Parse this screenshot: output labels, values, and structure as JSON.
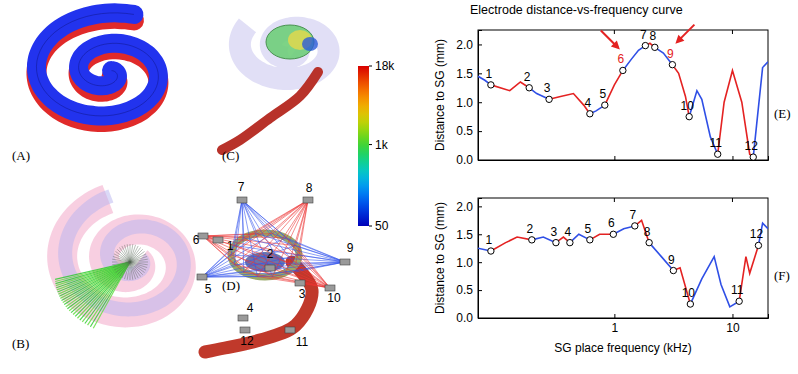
{
  "chart_data": [
    {
      "type": "line",
      "title": "Electrode distance-vs-frequency curve",
      "panel": "(E)",
      "y_label": "Distance to SG (mm)",
      "log": "x",
      "xlim": [
        0.07,
        20
      ],
      "xticks": [
        1,
        10
      ],
      "ylim": [
        0,
        2.25
      ],
      "yticks": [
        {
          "value": 0,
          "label": "0.0"
        },
        0.5,
        {
          "value": 1,
          "label": "1.0"
        },
        1.5,
        {
          "value": 2,
          "label": "2.0"
        }
      ],
      "tick_labels": "y",
      "series": [
        {
          "type": "line",
          "line_style": "solid",
          "color": "#2f4fe6",
          "x": [
            0.07,
            0.08,
            0.09
          ],
          "values": [
            1.45,
            1.38,
            1.3
          ]
        },
        {
          "type": "line",
          "line_style": "solid",
          "color": "#e42222",
          "x": [
            0.09,
            0.13,
            0.16,
            0.19
          ],
          "values": [
            1.3,
            1.2,
            1.35,
            1.25
          ]
        },
        {
          "type": "line",
          "line_style": "solid",
          "color": "#2f4fe6",
          "x": [
            0.19,
            0.22,
            0.28
          ],
          "values": [
            1.25,
            1.15,
            1.05
          ]
        },
        {
          "type": "line",
          "line_style": "solid",
          "color": "#e42222",
          "x": [
            0.28,
            0.35,
            0.45,
            0.55,
            0.62
          ],
          "values": [
            1.05,
            1.1,
            1.15,
            0.95,
            0.8
          ]
        },
        {
          "type": "line",
          "line_style": "solid",
          "color": "#2f4fe6",
          "x": [
            0.62,
            0.7,
            0.83
          ],
          "values": [
            0.8,
            0.85,
            0.95
          ]
        },
        {
          "type": "line",
          "line_style": "solid",
          "color": "#e42222",
          "x": [
            0.83,
            1.0,
            1.18
          ],
          "values": [
            0.95,
            1.3,
            1.55
          ]
        },
        {
          "type": "line",
          "line_style": "solid",
          "color": "#2f4fe6",
          "x": [
            1.18,
            1.4,
            1.6,
            1.83
          ],
          "values": [
            1.55,
            1.75,
            1.9,
            1.98
          ]
        },
        {
          "type": "line",
          "line_style": "solid",
          "color": "#e42222",
          "x": [
            1.83,
            2.0,
            2.2
          ],
          "values": [
            1.98,
            2.02,
            1.95
          ]
        },
        {
          "type": "line",
          "line_style": "solid",
          "color": "#2f4fe6",
          "x": [
            2.2,
            2.6,
            3.1
          ],
          "values": [
            1.95,
            1.85,
            1.65
          ]
        },
        {
          "type": "line",
          "line_style": "solid",
          "color": "#e42222",
          "x": [
            3.1,
            3.5,
            4.0,
            4.3
          ],
          "values": [
            1.65,
            1.5,
            1.1,
            0.75
          ]
        },
        {
          "type": "line",
          "line_style": "solid",
          "color": "#2f4fe6",
          "x": [
            4.3,
            5.0,
            5.5,
            6.5,
            7.5
          ],
          "values": [
            0.75,
            1.2,
            1.05,
            0.4,
            0.1
          ]
        },
        {
          "type": "line",
          "line_style": "solid",
          "color": "#e42222",
          "x": [
            7.5,
            8.5,
            10,
            12,
            14,
            15
          ],
          "values": [
            0.1,
            1.0,
            1.55,
            1.0,
            0.1,
            0.05
          ]
        },
        {
          "type": "line",
          "line_style": "solid",
          "color": "#2f4fe6",
          "x": [
            15,
            16,
            18,
            20
          ],
          "values": [
            0.05,
            0.6,
            1.6,
            1.7
          ]
        },
        {
          "type": "scatter",
          "marker": "circle",
          "x": [
            0.09,
            0.19,
            0.28,
            0.62,
            0.83,
            1.18,
            1.83,
            2.2,
            3.1,
            4.3,
            7.5,
            15
          ],
          "values": [
            1.3,
            1.25,
            1.05,
            0.8,
            0.95,
            1.55,
            1.98,
            1.95,
            1.65,
            0.75,
            0.1,
            0.05
          ],
          "labels": [
            "1",
            "2",
            "3",
            "4",
            "5",
            "6",
            "7",
            "8",
            "9",
            "10",
            "11",
            "12"
          ],
          "colors": [
            "#000000",
            "#000000",
            "#000000",
            "#000000",
            "#000000",
            "#e42222",
            "#000000",
            "#000000",
            "#e42222",
            "#000000",
            "#000000",
            "#000000"
          ]
        }
      ]
    },
    {
      "type": "line",
      "panel": "(F)",
      "x_label": "SG place frequency (kHz)",
      "y_label": "Distance to SG (mm)",
      "log": "x",
      "xlim": [
        0.07,
        20
      ],
      "xticks": [
        1,
        10
      ],
      "ylim": [
        0,
        2.15
      ],
      "yticks": [
        {
          "value": 0,
          "label": "0.0"
        },
        0.5,
        {
          "value": 1,
          "label": "1.0"
        },
        1.5,
        {
          "value": 2,
          "label": "2.0"
        }
      ],
      "series": [
        {
          "type": "line",
          "line_style": "solid",
          "color": "#2f4fe6",
          "x": [
            0.07,
            0.09
          ],
          "values": [
            1.25,
            1.2
          ]
        },
        {
          "type": "line",
          "line_style": "solid",
          "color": "#e42222",
          "x": [
            0.09,
            0.12,
            0.15,
            0.2
          ],
          "values": [
            1.2,
            1.35,
            1.45,
            1.4
          ]
        },
        {
          "type": "line",
          "line_style": "solid",
          "color": "#2f4fe6",
          "x": [
            0.2,
            0.25,
            0.32
          ],
          "values": [
            1.4,
            1.45,
            1.35
          ]
        },
        {
          "type": "line",
          "line_style": "solid",
          "color": "#e42222",
          "x": [
            0.32,
            0.37,
            0.42
          ],
          "values": [
            1.35,
            1.45,
            1.35
          ]
        },
        {
          "type": "line",
          "line_style": "solid",
          "color": "#2f4fe6",
          "x": [
            0.42,
            0.5,
            0.62
          ],
          "values": [
            1.35,
            1.5,
            1.4
          ]
        },
        {
          "type": "line",
          "line_style": "solid",
          "color": "#e42222",
          "x": [
            0.62,
            0.75,
            0.98
          ],
          "values": [
            1.4,
            1.5,
            1.5
          ]
        },
        {
          "type": "line",
          "line_style": "solid",
          "color": "#2f4fe6",
          "x": [
            0.98,
            1.2,
            1.49
          ],
          "values": [
            1.5,
            1.6,
            1.65
          ]
        },
        {
          "type": "line",
          "line_style": "solid",
          "color": "#e42222",
          "x": [
            1.49,
            1.7,
            1.97
          ],
          "values": [
            1.65,
            1.75,
            1.35
          ]
        },
        {
          "type": "line",
          "line_style": "solid",
          "color": "#2f4fe6",
          "x": [
            1.97,
            2.5,
            3.16
          ],
          "values": [
            1.35,
            1.1,
            0.85
          ]
        },
        {
          "type": "line",
          "line_style": "solid",
          "color": "#e42222",
          "x": [
            3.16,
            3.6,
            4.4
          ],
          "values": [
            0.85,
            0.9,
            0.25
          ]
        },
        {
          "type": "line",
          "line_style": "solid",
          "color": "#2f4fe6",
          "x": [
            4.4,
            5.5,
            7,
            8,
            9.5,
            11.4
          ],
          "values": [
            0.25,
            0.7,
            1.1,
            0.6,
            0.2,
            0.3
          ]
        },
        {
          "type": "line",
          "line_style": "solid",
          "color": "#e42222",
          "x": [
            11.4,
            13,
            14,
            16.6
          ],
          "values": [
            0.3,
            1.1,
            0.8,
            1.3
          ]
        },
        {
          "type": "line",
          "line_style": "solid",
          "color": "#2f4fe6",
          "x": [
            16.6,
            18,
            20
          ],
          "values": [
            1.3,
            1.7,
            1.6
          ]
        },
        {
          "type": "scatter",
          "marker": "circle",
          "x": [
            0.09,
            0.2,
            0.32,
            0.42,
            0.62,
            0.98,
            1.49,
            1.97,
            3.16,
            4.4,
            11.4,
            16.6
          ],
          "values": [
            1.2,
            1.4,
            1.35,
            1.35,
            1.4,
            1.5,
            1.65,
            1.35,
            0.85,
            0.25,
            0.3,
            1.3
          ],
          "labels": [
            "1",
            "2",
            "3",
            "4",
            "5",
            "6",
            "7",
            "8",
            "9",
            "10",
            "11",
            "12"
          ],
          "colors": [
            "#000000",
            "#000000",
            "#000000",
            "#000000",
            "#000000",
            "#000000",
            "#000000",
            "#000000",
            "#000000",
            "#000000",
            "#000000",
            "#000000"
          ]
        }
      ]
    }
  ],
  "figure": {
    "panels": [
      "(A)",
      "(B)",
      "(C)",
      "(D)"
    ],
    "electrode_labels": [
      "1",
      "2",
      "3",
      "4",
      "5",
      "6",
      "7",
      "8",
      "9",
      "10",
      "11",
      "12"
    ],
    "colorbar": {
      "log": true,
      "range": [
        50,
        18000
      ],
      "ticks": [
        50,
        {
          "value": 1000,
          "label": "1k"
        },
        {
          "value": 18000,
          "label": "18k"
        }
      ]
    }
  }
}
